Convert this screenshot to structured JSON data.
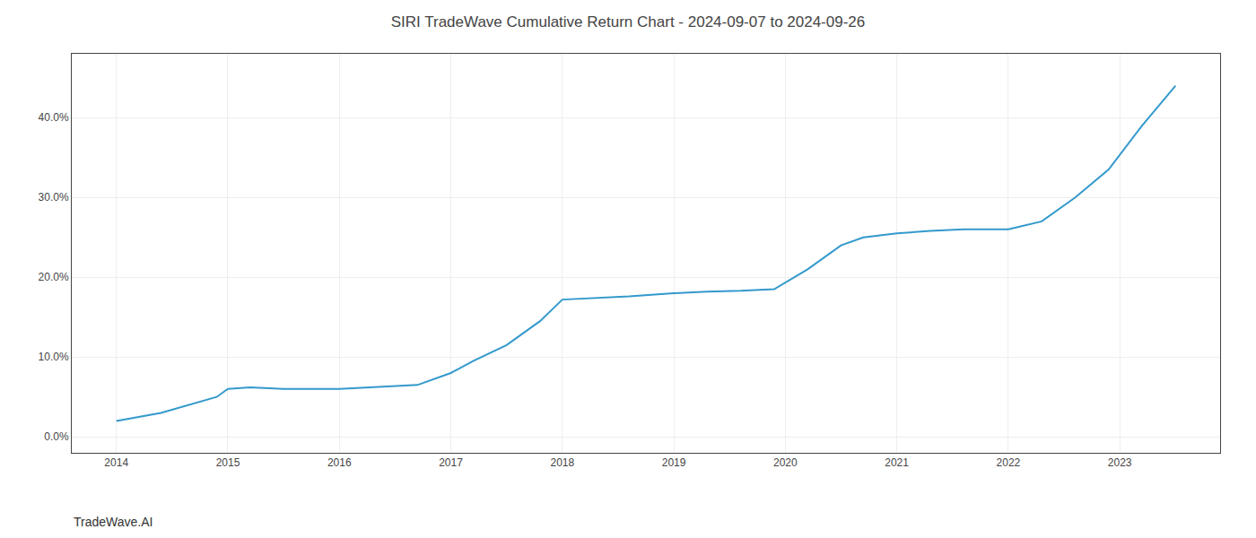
{
  "chart_data": {
    "type": "line",
    "title": "SIRI TradeWave Cumulative Return Chart - 2024-09-07 to 2024-09-26",
    "annotations": [
      "TradeWave.AI"
    ],
    "x": [
      2014.0,
      2014.4,
      2014.9,
      2015.0,
      2015.2,
      2015.5,
      2016.0,
      2016.3,
      2016.7,
      2017.0,
      2017.2,
      2017.5,
      2017.8,
      2018.0,
      2018.3,
      2018.6,
      2019.0,
      2019.3,
      2019.6,
      2019.9,
      2020.2,
      2020.5,
      2020.7,
      2021.0,
      2021.3,
      2021.6,
      2022.0,
      2022.3,
      2022.6,
      2022.9,
      2023.2,
      2023.5
    ],
    "values": [
      2.0,
      3.0,
      5.0,
      6.0,
      6.2,
      6.0,
      6.0,
      6.2,
      6.5,
      8.0,
      9.5,
      11.5,
      14.5,
      17.2,
      17.4,
      17.6,
      18.0,
      18.2,
      18.3,
      18.5,
      21.0,
      24.0,
      25.0,
      25.5,
      25.8,
      26.0,
      26.0,
      27.0,
      30.0,
      33.5,
      39.0,
      44.0
    ],
    "color": "#3399cc",
    "xlim": [
      2013.6,
      2023.9
    ],
    "ylim": [
      -2.0,
      48.0
    ],
    "xticks": [
      2014,
      2015,
      2016,
      2017,
      2018,
      2019,
      2020,
      2021,
      2022,
      2023
    ],
    "yticks": [
      {
        "value": 0.0,
        "label": "0.0%"
      },
      {
        "value": 10.0,
        "label": "10.0%"
      },
      {
        "value": 20.0,
        "label": "20.0%"
      },
      {
        "value": 30.0,
        "label": "30.0%"
      },
      {
        "value": 40.0,
        "label": "40.0%"
      }
    ],
    "grid": true
  }
}
